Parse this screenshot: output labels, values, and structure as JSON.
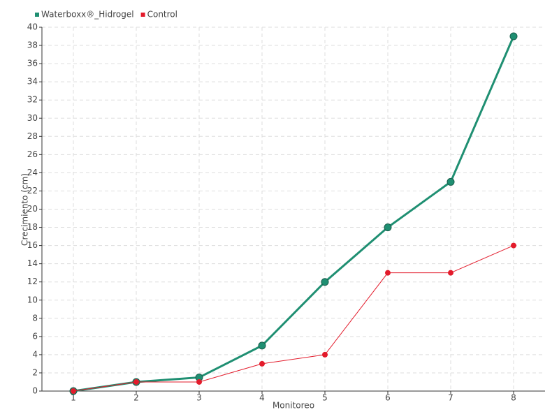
{
  "chart_data": {
    "type": "line",
    "x_label": "Monitoreo",
    "y_label": "Crecimiento (cm)",
    "categories": [
      "1",
      "2",
      "3",
      "4",
      "5",
      "6",
      "7",
      "8"
    ],
    "series": [
      {
        "name": "Waterboxx®_Hidrogel",
        "color": "#1f8f72",
        "values": [
          0,
          1,
          1.5,
          5,
          12,
          18,
          23,
          39
        ]
      },
      {
        "name": "Control",
        "color": "#e31b2b",
        "values": [
          0,
          1,
          1,
          3,
          4,
          13,
          13,
          16
        ]
      }
    ],
    "ylim": [
      0,
      40
    ],
    "yticks": [
      0,
      2,
      4,
      6,
      8,
      10,
      12,
      14,
      16,
      18,
      20,
      22,
      24,
      26,
      28,
      30,
      32,
      34,
      36,
      38,
      40
    ],
    "grid": true,
    "legend": "top-left"
  }
}
